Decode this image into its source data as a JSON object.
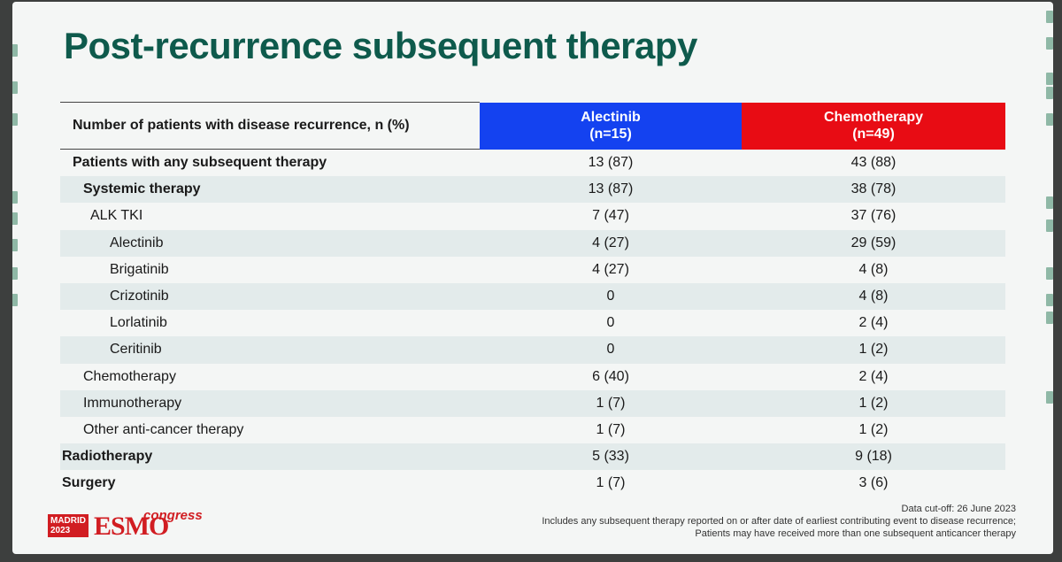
{
  "title": "Post-recurrence subsequent therapy",
  "table": {
    "header": {
      "label": "Number of patients with disease recurrence, n (%)",
      "col1_name": "Alectinib",
      "col1_n": "(n=15)",
      "col2_name": "Chemotherapy",
      "col2_n": "(n=49)"
    },
    "rows": [
      {
        "label": "Patients with any subsequent therapy",
        "a": "13 (87)",
        "c": "43 (88)"
      },
      {
        "label": "Systemic therapy",
        "a": "13 (87)",
        "c": "38 (78)"
      },
      {
        "label": "ALK TKI",
        "a": "7 (47)",
        "c": "37 (76)"
      },
      {
        "label": "Alectinib",
        "a": "4 (27)",
        "c": "29 (59)"
      },
      {
        "label": "Brigatinib",
        "a": "4 (27)",
        "c": "4 (8)"
      },
      {
        "label": "Crizotinib",
        "a": "0",
        "c": "4 (8)"
      },
      {
        "label": "Lorlatinib",
        "a": "0",
        "c": "2 (4)"
      },
      {
        "label": "Ceritinib",
        "a": "0",
        "c": "1 (2)"
      },
      {
        "label": "Chemotherapy",
        "a": "6 (40)",
        "c": "2 (4)"
      },
      {
        "label": "Immunotherapy",
        "a": "1 (7)",
        "c": "1 (2)"
      },
      {
        "label": "Other anti-cancer therapy",
        "a": "1 (7)",
        "c": "1 (2)"
      },
      {
        "label": "Radiotherapy",
        "a": "5 (33)",
        "c": "9 (18)"
      },
      {
        "label": "Surgery",
        "a": "1 (7)",
        "c": "3 (6)"
      }
    ]
  },
  "logo": {
    "city_line1": "MADRID",
    "city_line2": "2023",
    "brand": "ESMO",
    "suffix": "congress"
  },
  "footnote": {
    "line1": "Data cut-off: 26 June 2023",
    "line2": "Includes any subsequent therapy reported on or after date of earliest contributing event to disease recurrence;",
    "line3": "Patients may have received more than one subsequent anticancer therapy"
  },
  "colors": {
    "title": "#0e5a4c",
    "alectinib_header": "#1442f0",
    "chemotherapy_header": "#e80c14",
    "stripe": "#e3ebeb"
  }
}
